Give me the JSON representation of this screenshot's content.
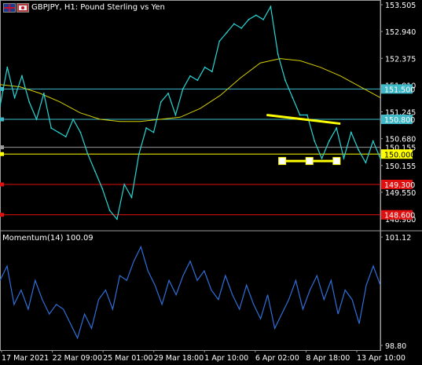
{
  "window": {
    "symbol_title": "GBPJPY, H1:  Pound Sterling vs Yen",
    "indicator_title": "Momentum(14) 100.09"
  },
  "colors": {
    "background": "#000000",
    "price_line": "#28d6d6",
    "ma_line": "#d8d000",
    "hline_cyan": "#3fb8c8",
    "hline_gray": "#9a9a9a",
    "hline_red": "#e01010",
    "trendline": "#ffff00",
    "momentum_line": "#2f6fd8",
    "axis_text": "#ffffff"
  },
  "chart_data": [
    {
      "type": "line",
      "name": "price",
      "ylim": [
        148.25,
        153.55
      ],
      "y_ticks": [
        "153.505",
        "152.940",
        "152.375",
        "151.810",
        "151.245",
        "150.680",
        "150.155",
        "149.550",
        "148.980"
      ],
      "x_tick_labels": [
        "17 Mar 2021",
        "22 Mar 09:00",
        "25 Mar 01:00",
        "29 Mar 18:00",
        "1 Apr 10:00",
        "6 Apr 02:00",
        "8 Apr 18:00",
        "13 Apr 10:00"
      ],
      "series": [
        {
          "values": [
            151.1,
            152.0,
            151.3,
            151.8,
            151.2,
            150.8,
            151.4,
            150.6,
            150.5,
            150.4,
            150.8,
            150.5,
            150.0,
            149.6,
            149.2,
            148.7,
            148.5,
            149.3,
            149.0,
            150.0,
            150.6,
            150.5,
            151.2,
            151.4,
            150.9,
            151.5,
            151.8,
            151.7,
            152.0,
            151.9,
            152.6,
            152.8,
            153.0,
            152.9,
            153.1,
            153.2,
            153.1,
            153.4,
            152.3,
            151.7,
            151.3,
            150.9,
            150.9,
            150.3,
            149.9,
            150.3,
            150.6,
            149.9,
            150.5,
            150.1,
            149.8,
            150.3,
            149.9
          ],
          "x_start": 0,
          "x_end": 1
        },
        {
          "name": "",
          "values": [
            151.6,
            151.55,
            151.4,
            151.2,
            150.95,
            150.8,
            150.75,
            150.75,
            150.8,
            150.85,
            151.05,
            151.35,
            151.75,
            152.1,
            152.2,
            152.15,
            152.0,
            151.8,
            151.55,
            151.3
          ],
          "x_start": 0,
          "x_end": 1
        }
      ],
      "hlines": [
        {
          "value": 151.5,
          "label": "151.500",
          "color": "#3fb8c8",
          "style": "filled"
        },
        {
          "value": 150.8,
          "label": "150.800",
          "color": "#3fb8c8",
          "style": "filled"
        },
        {
          "value": 150.155,
          "label": "150.155",
          "color": "#9a9a9a",
          "style": "text"
        },
        {
          "value": 150.0,
          "label": "150.000",
          "color": "#ffff00",
          "style": "filled"
        },
        {
          "value": 149.3,
          "label": "149.300",
          "color": "#e01010",
          "style": "filled"
        },
        {
          "value": 148.6,
          "label": "148.600",
          "color": "#e01010",
          "style": "filled"
        }
      ],
      "trendlines": [
        {
          "from": [
            0.701,
            150.9
          ],
          "to": [
            0.895,
            150.7
          ]
        },
        {
          "from": [
            0.742,
            149.84
          ],
          "to": [
            0.885,
            149.84
          ]
        }
      ]
    },
    {
      "type": "line",
      "name": "Momentum(14)",
      "ylim": [
        98.75,
        101.2
      ],
      "y_ticks": [
        "101.12",
        "98.80"
      ],
      "series": [
        {
          "name": "Momentum(14)",
          "values": [
            100.2,
            100.5,
            99.7,
            100.0,
            99.6,
            100.2,
            99.8,
            99.5,
            99.7,
            99.6,
            99.3,
            99.0,
            99.5,
            99.2,
            99.8,
            100.0,
            99.6,
            100.3,
            100.2,
            100.6,
            100.9,
            100.4,
            100.1,
            99.7,
            100.2,
            99.9,
            100.3,
            100.6,
            100.2,
            100.4,
            100.0,
            99.8,
            100.3,
            99.9,
            99.6,
            100.1,
            99.7,
            99.4,
            99.9,
            99.2,
            99.5,
            99.8,
            100.2,
            99.6,
            100.0,
            100.3,
            99.8,
            100.2,
            99.5,
            100.0,
            99.8,
            99.3,
            100.1,
            100.5,
            100.1
          ],
          "x_start": 0,
          "x_end": 1
        }
      ]
    }
  ]
}
